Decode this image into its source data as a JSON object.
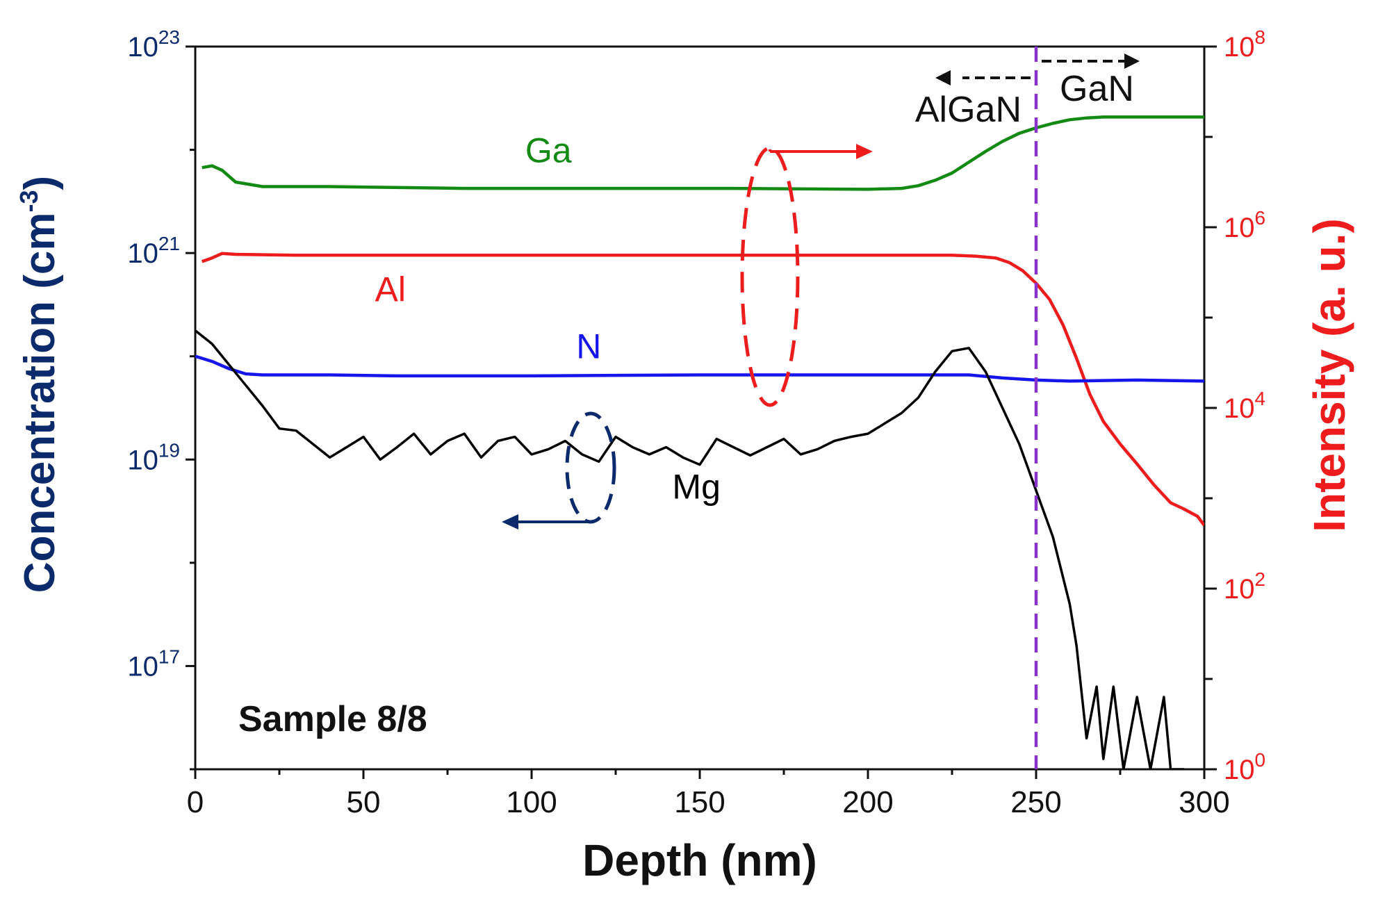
{
  "chart_data": {
    "type": "line",
    "title": "",
    "annotation": "Sample 8/8",
    "xlabel": "Depth (nm)",
    "xlim": [
      0,
      300
    ],
    "x_ticks": [
      0,
      50,
      100,
      150,
      200,
      250,
      300
    ],
    "left_axis": {
      "label_main": "Concentration (cm",
      "label_sup": "-3",
      "label_close": ")",
      "scale": "log10",
      "lim_exp": [
        16,
        23
      ],
      "ticks": [
        {
          "exp": 23,
          "base": "10",
          "sup": "23"
        },
        {
          "exp": 21,
          "base": "10",
          "sup": "21"
        },
        {
          "exp": 19,
          "base": "10",
          "sup": "19"
        },
        {
          "exp": 17,
          "base": "10",
          "sup": "17"
        }
      ],
      "color": "#0b2a6b"
    },
    "right_axis": {
      "label": "Intensity (a. u.)",
      "scale": "log10",
      "lim_exp": [
        0,
        8
      ],
      "ticks": [
        {
          "exp": 8,
          "base": "10",
          "sup": "8"
        },
        {
          "exp": 6,
          "base": "10",
          "sup": "6"
        },
        {
          "exp": 4,
          "base": "10",
          "sup": "4"
        },
        {
          "exp": 2,
          "base": "10",
          "sup": "2"
        },
        {
          "exp": 0,
          "base": "10",
          "sup": "0"
        }
      ],
      "color": "#ee1c1c"
    },
    "series": [
      {
        "name": "Ga",
        "axis": "right",
        "color": "#138a13",
        "x": [
          2,
          5,
          8,
          12,
          20,
          40,
          80,
          120,
          160,
          200,
          210,
          215,
          220,
          225,
          230,
          235,
          240,
          245,
          250,
          255,
          260,
          265,
          270,
          280,
          290,
          300
        ],
        "y_exp": [
          6.66,
          6.68,
          6.63,
          6.5,
          6.45,
          6.45,
          6.43,
          6.43,
          6.43,
          6.42,
          6.43,
          6.46,
          6.52,
          6.6,
          6.72,
          6.84,
          6.95,
          7.04,
          7.1,
          7.15,
          7.19,
          7.21,
          7.22,
          7.22,
          7.22,
          7.22
        ]
      },
      {
        "name": "Al",
        "axis": "right",
        "color": "#ee1c1c",
        "x": [
          2,
          5,
          8,
          12,
          30,
          100,
          200,
          225,
          232,
          238,
          242,
          246,
          250,
          254,
          258,
          262,
          266,
          270,
          275,
          280,
          285,
          290,
          294,
          298,
          300
        ],
        "y_exp": [
          5.62,
          5.66,
          5.71,
          5.7,
          5.69,
          5.69,
          5.69,
          5.69,
          5.68,
          5.66,
          5.61,
          5.52,
          5.38,
          5.2,
          4.92,
          4.55,
          4.15,
          3.85,
          3.6,
          3.38,
          3.15,
          2.95,
          2.88,
          2.8,
          2.7
        ]
      },
      {
        "name": "N",
        "axis": "left",
        "color": "#1515ee",
        "x": [
          0,
          5,
          10,
          15,
          20,
          40,
          60,
          100,
          150,
          200,
          230,
          240,
          250,
          260,
          280,
          300
        ],
        "y_exp": [
          20.0,
          19.95,
          19.88,
          19.83,
          19.82,
          19.82,
          19.81,
          19.81,
          19.82,
          19.82,
          19.82,
          19.79,
          19.77,
          19.76,
          19.77,
          19.76
        ]
      },
      {
        "name": "Mg",
        "axis": "left",
        "color": "#000000",
        "x": [
          0,
          5,
          10,
          15,
          20,
          25,
          30,
          35,
          40,
          45,
          50,
          55,
          60,
          65,
          70,
          75,
          80,
          85,
          90,
          95,
          100,
          105,
          110,
          115,
          120,
          125,
          130,
          135,
          140,
          145,
          150,
          155,
          160,
          165,
          170,
          175,
          180,
          185,
          190,
          195,
          200,
          205,
          210,
          215,
          220,
          225,
          230,
          235,
          240,
          245,
          250,
          255,
          260,
          262,
          265,
          268,
          270,
          273,
          276,
          280,
          284,
          288,
          290,
          294
        ],
        "y_exp": [
          20.25,
          20.12,
          19.92,
          19.72,
          19.52,
          19.3,
          19.28,
          19.15,
          19.02,
          19.12,
          19.22,
          19.0,
          19.12,
          19.25,
          19.05,
          19.18,
          19.25,
          19.02,
          19.18,
          19.22,
          19.05,
          19.1,
          19.18,
          19.05,
          18.98,
          19.22,
          19.12,
          19.05,
          19.12,
          19.02,
          18.95,
          19.2,
          19.12,
          19.04,
          19.12,
          19.2,
          19.05,
          19.1,
          19.18,
          19.22,
          19.25,
          19.35,
          19.45,
          19.6,
          19.85,
          20.05,
          20.08,
          19.85,
          19.5,
          19.15,
          18.7,
          18.25,
          17.6,
          17.2,
          16.3,
          16.8,
          16.1,
          16.8,
          16.0,
          16.7,
          16.0,
          16.7,
          16.0,
          16.0
        ]
      }
    ],
    "series_labels": [
      {
        "name": "Ga",
        "text": "Ga",
        "x": 105,
        "y_exp": 6.72,
        "axis": "right",
        "color": "#138a13"
      },
      {
        "name": "Al",
        "text": "Al",
        "x": 58,
        "y_exp": 5.18,
        "axis": "right",
        "color": "#ee1c1c"
      },
      {
        "name": "N",
        "text": "N",
        "x": 117,
        "y_exp": 19.98,
        "axis": "left",
        "color": "#1515ee"
      },
      {
        "name": "Mg",
        "text": "Mg",
        "x": 149,
        "y_exp": 18.62,
        "axis": "left",
        "color": "#000000"
      }
    ],
    "interface": {
      "x": 250,
      "color": "#8833cc",
      "left_label": "AlGaN",
      "right_label": "GaN"
    }
  }
}
